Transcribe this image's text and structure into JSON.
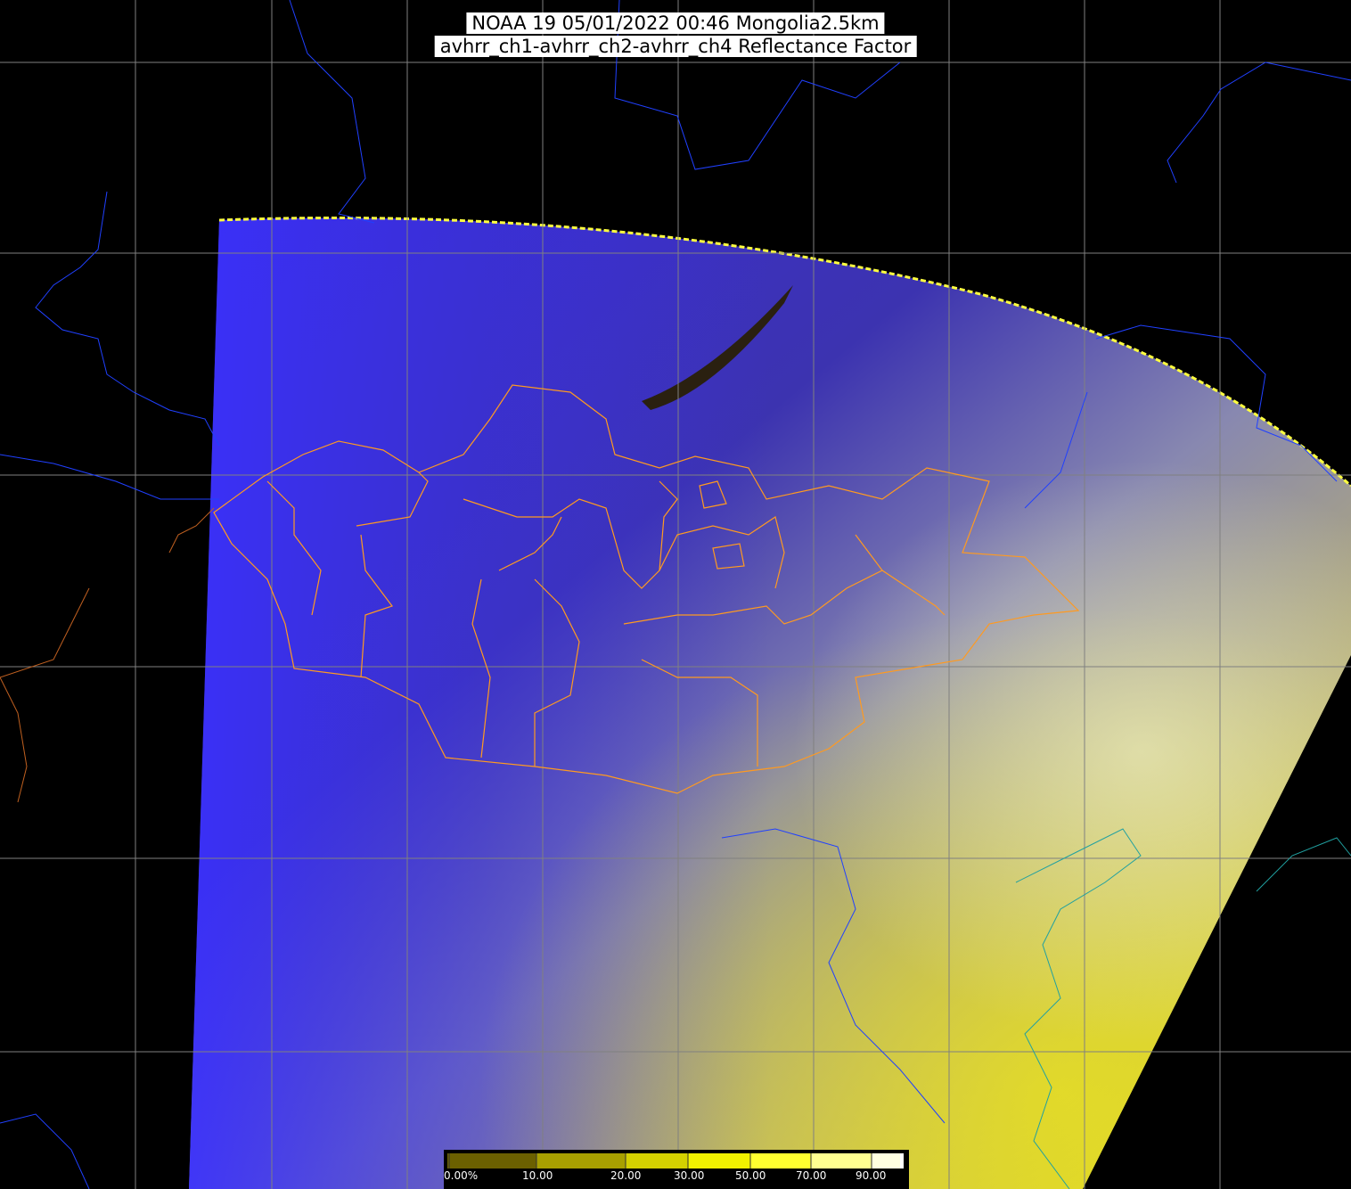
{
  "title": {
    "line1": "NOAA 19 05/01/2022 00:46 Mongolia2.5km",
    "line2": "avhrr_ch1-avhrr_ch2-avhrr_ch4 Reflectance Factor"
  },
  "colorbar": {
    "ticks": [
      "0.00%",
      "10.00",
      "20.00",
      "30.00",
      "50.00",
      "70.00",
      "90.00"
    ],
    "colors": [
      "#6b6000",
      "#a8a000",
      "#d4d000",
      "#f2f200",
      "#ffff30",
      "#ffff90",
      "#ffffe0",
      "#ffffff"
    ]
  },
  "colors": {
    "background": "#000000",
    "grid": "#808080",
    "country_border": "#2040ff",
    "mongolia_province_border": "#ff9a20",
    "coastline": "#20a0a0"
  }
}
